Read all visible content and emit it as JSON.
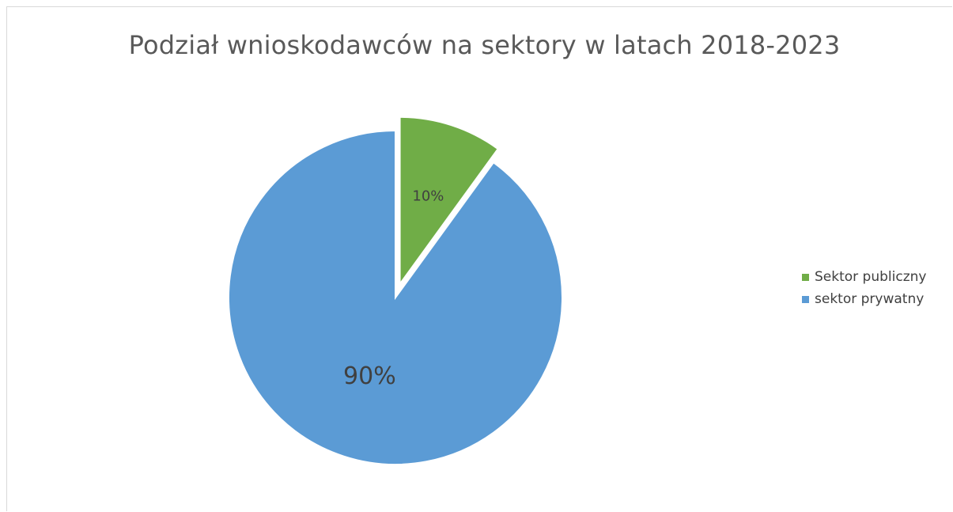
{
  "chart_data": {
    "type": "pie",
    "title": "Podział wnioskodawców na sektory w latach 2018-2023",
    "slices": [
      {
        "name": "Sektor publiczny",
        "value": 10,
        "label": "10%",
        "color": "#70ad47",
        "exploded": true
      },
      {
        "name": "sektor prywatny",
        "value": 90,
        "label": "90%",
        "color": "#5b9bd5",
        "exploded": false
      }
    ],
    "legend_position": "right"
  }
}
